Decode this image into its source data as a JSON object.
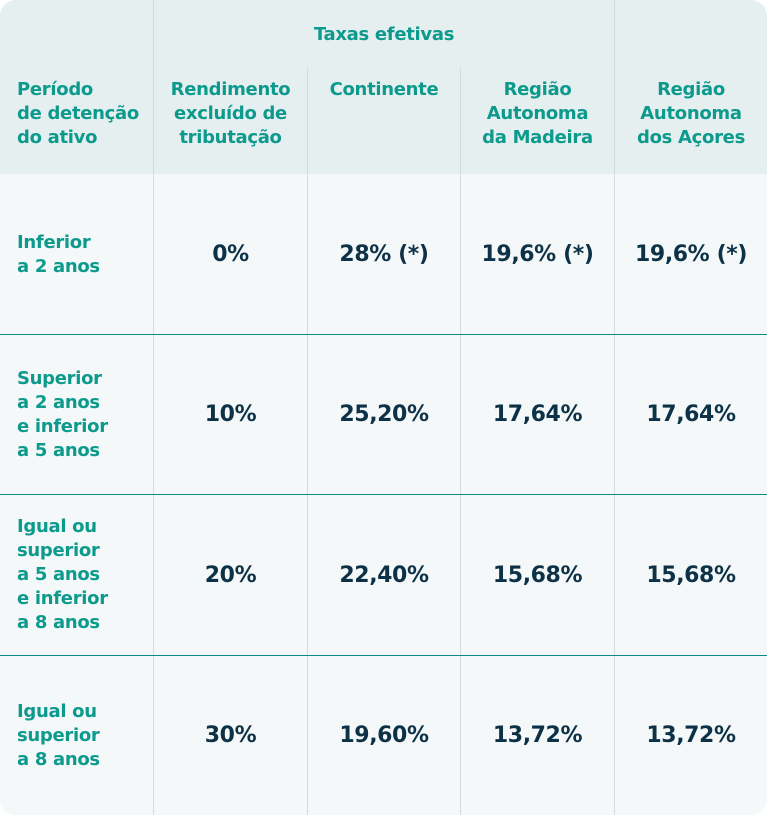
{
  "table": {
    "group_header": "Taxas efetivas",
    "columns": [
      "Período\nde detenção\ndo ativo",
      "Rendimento\nexcluído de\ntributação",
      "Continente",
      "Região\nAutonoma\nda Madeira",
      "Região\nAutonoma\ndos Açores"
    ],
    "rows": [
      {
        "label": "Inferior\na 2 anos",
        "values": [
          "0%",
          "28% (*)",
          "19,6% (*)",
          "19,6% (*)"
        ]
      },
      {
        "label": "Superior\na 2 anos\ne inferior\na 5 anos",
        "values": [
          "10%",
          "25,20%",
          "17,64%",
          "17,64%"
        ]
      },
      {
        "label": "Igual ou\nsuperior\na 5 anos\ne inferior\na 8 anos",
        "values": [
          "20%",
          "22,40%",
          "15,68%",
          "15,68%"
        ]
      },
      {
        "label": "Igual ou\nsuperior\na 8 anos",
        "values": [
          "30%",
          "19,60%",
          "13,72%",
          "13,72%"
        ]
      }
    ]
  },
  "colors": {
    "header_background": "#e5efef",
    "body_background": "#f4f8f9",
    "header_text": "#0c9a8d",
    "value_text": "#0d3247",
    "row_divider": "#0d8c84"
  }
}
